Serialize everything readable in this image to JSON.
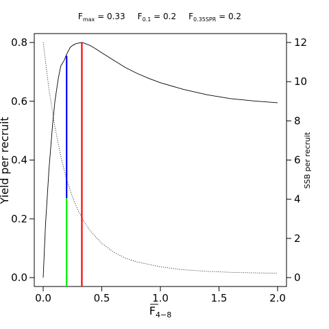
{
  "chart_data": {
    "type": "line",
    "title_parts": [
      {
        "label": "F",
        "subscript": "max",
        "suffix": " = 0.33"
      },
      {
        "label": "F",
        "subscript": "0.1",
        "suffix": " = 0.2"
      },
      {
        "label": "F",
        "subscript": "0.35SPR",
        "suffix": " = 0.2"
      }
    ],
    "xlabel": {
      "main": "F",
      "subscript": "4−8"
    },
    "ylabel_left": "Yield per recruit",
    "ylabel_right": "SSB per recruit",
    "xlim": [
      0,
      2
    ],
    "ylim_left": [
      0,
      0.8
    ],
    "ylim_right": [
      0,
      12
    ],
    "x_ticks": [
      {
        "value": 0.0,
        "label": "0.0"
      },
      {
        "value": 0.5,
        "label": "0.5"
      },
      {
        "value": 1.0,
        "label": "1.0"
      },
      {
        "value": 1.5,
        "label": "1.5"
      },
      {
        "value": 2.0,
        "label": "2.0"
      }
    ],
    "y_ticks_left": [
      {
        "value": 0.0,
        "label": "0.0"
      },
      {
        "value": 0.2,
        "label": "0.2"
      },
      {
        "value": 0.4,
        "label": "0.4"
      },
      {
        "value": 0.6,
        "label": "0.6"
      },
      {
        "value": 0.8,
        "label": "0.8"
      }
    ],
    "y_ticks_right": [
      {
        "value": 0,
        "label": "0"
      },
      {
        "value": 2,
        "label": "2"
      },
      {
        "value": 4,
        "label": "4"
      },
      {
        "value": 6,
        "label": "6"
      },
      {
        "value": 8,
        "label": "8"
      },
      {
        "value": 10,
        "label": "10"
      },
      {
        "value": 12,
        "label": "12"
      }
    ],
    "grid": false,
    "series": [
      {
        "axis": "left",
        "style": "solid",
        "color": "#000000",
        "x": [
          0,
          0.02,
          0.05,
          0.08,
          0.1,
          0.13,
          0.15,
          0.18,
          0.2,
          0.23,
          0.25,
          0.28,
          0.3,
          0.33,
          0.35,
          0.4,
          0.45,
          0.5,
          0.6,
          0.7,
          0.8,
          0.9,
          1.0,
          1.2,
          1.4,
          1.6,
          1.8,
          2.0
        ],
        "values": [
          0,
          0.18,
          0.37,
          0.52,
          0.6,
          0.68,
          0.72,
          0.74,
          0.76,
          0.783,
          0.79,
          0.796,
          0.798,
          0.8,
          0.798,
          0.79,
          0.778,
          0.765,
          0.74,
          0.715,
          0.695,
          0.678,
          0.663,
          0.64,
          0.622,
          0.609,
          0.601,
          0.595
        ]
      },
      {
        "axis": "right",
        "style": "dotted",
        "color": "#000000",
        "x": [
          0,
          0.05,
          0.1,
          0.15,
          0.2,
          0.25,
          0.3,
          0.35,
          0.4,
          0.5,
          0.6,
          0.7,
          0.8,
          1.0,
          1.2,
          1.4,
          1.6,
          1.8,
          2.0
        ],
        "values": [
          12.0,
          9.6,
          7.7,
          6.2,
          5.0,
          4.1,
          3.4,
          2.85,
          2.4,
          1.75,
          1.3,
          1.0,
          0.8,
          0.55,
          0.4,
          0.32,
          0.27,
          0.24,
          0.22
        ]
      }
    ],
    "reference_lines": [
      {
        "label": "Fmax",
        "x": 0.33,
        "color": "#ff0000",
        "y_from": 0,
        "y_to": 0.8
      },
      {
        "label": "F0.1",
        "x": 0.2,
        "color": "#0000ff",
        "y_from": 0.27,
        "y_to": 0.755
      },
      {
        "label": "F0.35SPR",
        "x": 0.2,
        "color": "#00ee00",
        "y_from": 0,
        "y_to": 0.27
      }
    ]
  }
}
